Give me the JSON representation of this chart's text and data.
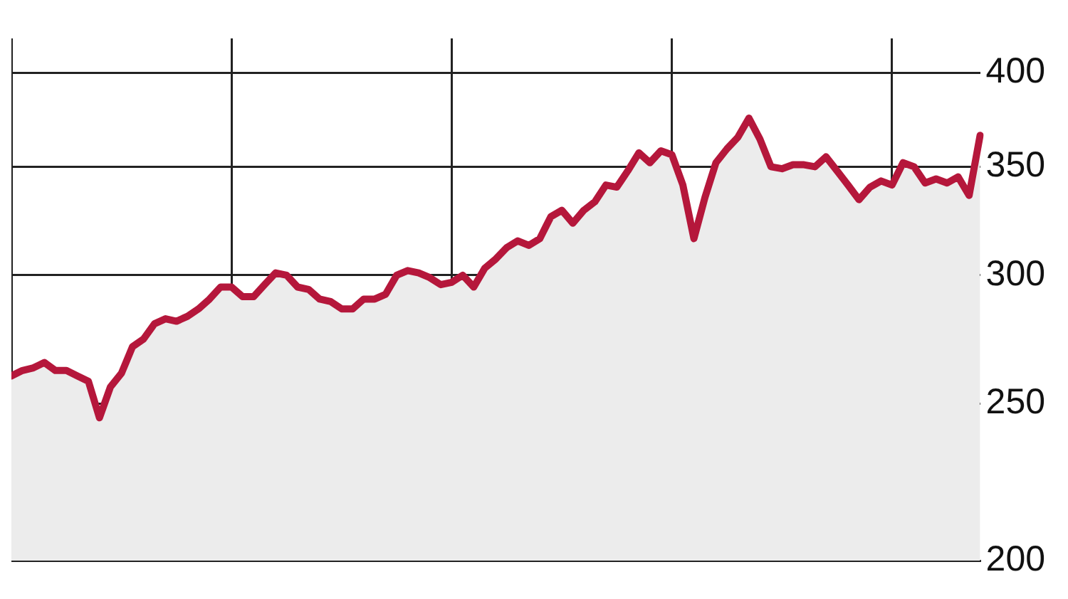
{
  "chart_data": {
    "type": "area",
    "log": "y",
    "grid": true,
    "tick_labels": "y",
    "categories": [
      null,
      null,
      null,
      null,
      null,
      null,
      null,
      null,
      null,
      null,
      null,
      null,
      null,
      null,
      null,
      null,
      null,
      null,
      null,
      null,
      null,
      null,
      null,
      null,
      null,
      null,
      null,
      null,
      null,
      null,
      null,
      null,
      null,
      null,
      null,
      null,
      null,
      null,
      null,
      null,
      null,
      null,
      null,
      null,
      null,
      null,
      null,
      null,
      null,
      null,
      null,
      null,
      null,
      null,
      null,
      null,
      null,
      null,
      null,
      null,
      null,
      null,
      null,
      null,
      null,
      null,
      null,
      null,
      null,
      null,
      null,
      null,
      null,
      null,
      null,
      null,
      null,
      null,
      null,
      null,
      null,
      null,
      null,
      null,
      null,
      null,
      null,
      null,
      null
    ],
    "ylim": [
      200,
      420
    ],
    "yticks": [
      200,
      250,
      300,
      350,
      400
    ],
    "series": [
      {
        "color": "#b5173b",
        "values": [
          260,
          262,
          263,
          265,
          262,
          262,
          260,
          258,
          245,
          256,
          261,
          271,
          274,
          280,
          282,
          281,
          283,
          286,
          290,
          295,
          295,
          291,
          291,
          296,
          301,
          300,
          295,
          294,
          290,
          289,
          286,
          286,
          290,
          290,
          292,
          300,
          302,
          301,
          299,
          296,
          297,
          300,
          295,
          303,
          307,
          312,
          315,
          313,
          316,
          326,
          329,
          323,
          329,
          333,
          341,
          340,
          348,
          357,
          352,
          358,
          356,
          341,
          316,
          335,
          352,
          359,
          365,
          375,
          364,
          350,
          349,
          351,
          351,
          350,
          355,
          348,
          341,
          334,
          340,
          343,
          341,
          352,
          350,
          342,
          344,
          342,
          345,
          336,
          366
        ]
      }
    ]
  }
}
